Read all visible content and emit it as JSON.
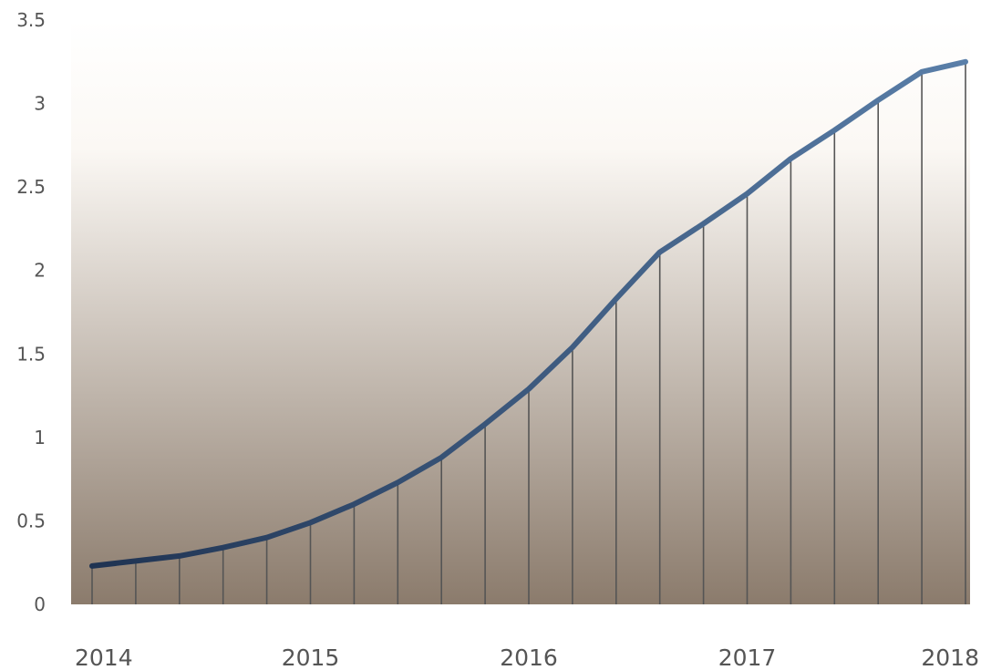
{
  "chart_data": {
    "type": "area",
    "title": "",
    "xlabel": "",
    "ylabel": "",
    "x_tick_labels": [
      "2014",
      "2015",
      "2016",
      "2017",
      "2018"
    ],
    "y_tick_labels": [
      "0",
      "0.5",
      "1",
      "1.5",
      "2",
      "2.5",
      "3",
      "3.5"
    ],
    "ylim": [
      0,
      3.5
    ],
    "xlim": [
      2014,
      2018
    ],
    "grid": false,
    "legend": "none",
    "x": [
      2014.0,
      2014.2,
      2014.4,
      2014.6,
      2014.8,
      2015.0,
      2015.2,
      2015.4,
      2015.6,
      2015.8,
      2016.0,
      2016.2,
      2016.4,
      2016.6,
      2016.8,
      2017.0,
      2017.2,
      2017.4,
      2017.6,
      2017.8,
      2018.0
    ],
    "series": [
      {
        "values": [
          0.23,
          0.26,
          0.29,
          0.34,
          0.4,
          0.49,
          0.6,
          0.73,
          0.88,
          1.08,
          1.29,
          1.54,
          1.83,
          2.11,
          2.28,
          2.46,
          2.67,
          2.84,
          3.02,
          3.19,
          3.25
        ]
      }
    ],
    "colors": {
      "line": "#3d5f86",
      "drop_lines": "#555555",
      "fill_top": "#ffffff",
      "fill_bottom": "#8b7b6c"
    }
  }
}
